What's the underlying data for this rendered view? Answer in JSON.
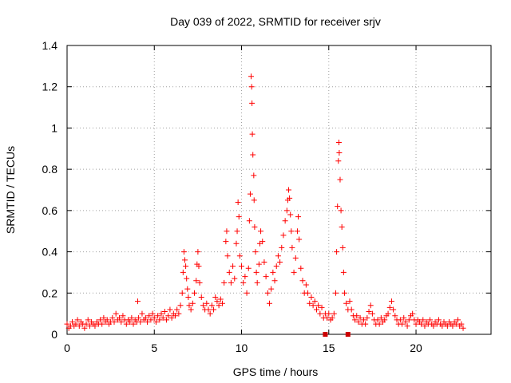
{
  "chart_data": {
    "type": "scatter",
    "title": "Day 039 of 2022, SRMTID for receiver srjv",
    "xlabel": "GPS time / hours",
    "ylabel": "SRMTID / TECUs",
    "xlim": [
      0,
      24.3
    ],
    "ylim": [
      0,
      1.4
    ],
    "xticks": [
      0,
      5,
      10,
      15,
      20
    ],
    "xtick_labels": [
      "0",
      "5",
      "10",
      "15",
      "20"
    ],
    "yticks": [
      0,
      0.2,
      0.4,
      0.6,
      0.8,
      1,
      1.2,
      1.4
    ],
    "ytick_labels": [
      "0",
      "0.2",
      "0.4",
      "0.6",
      "0.8",
      "1",
      "1.2",
      "1.4"
    ],
    "grid": true,
    "marker": "+",
    "series_color": "#ff0000",
    "series": [
      {
        "name": "SRMTID",
        "points": [
          [
            0.0,
            0.05
          ],
          [
            0.1,
            0.03
          ],
          [
            0.2,
            0.04
          ],
          [
            0.3,
            0.06
          ],
          [
            0.4,
            0.04
          ],
          [
            0.5,
            0.05
          ],
          [
            0.6,
            0.07
          ],
          [
            0.7,
            0.04
          ],
          [
            0.8,
            0.06
          ],
          [
            0.9,
            0.05
          ],
          [
            1.0,
            0.03
          ],
          [
            1.1,
            0.05
          ],
          [
            1.2,
            0.07
          ],
          [
            1.3,
            0.04
          ],
          [
            1.4,
            0.06
          ],
          [
            1.5,
            0.05
          ],
          [
            1.6,
            0.04
          ],
          [
            1.7,
            0.06
          ],
          [
            1.8,
            0.05
          ],
          [
            1.9,
            0.07
          ],
          [
            2.0,
            0.05
          ],
          [
            2.1,
            0.08
          ],
          [
            2.2,
            0.06
          ],
          [
            2.3,
            0.07
          ],
          [
            2.4,
            0.05
          ],
          [
            2.5,
            0.06
          ],
          [
            2.6,
            0.08
          ],
          [
            2.7,
            0.06
          ],
          [
            2.8,
            0.1
          ],
          [
            2.9,
            0.07
          ],
          [
            3.0,
            0.08
          ],
          [
            3.1,
            0.06
          ],
          [
            3.2,
            0.09
          ],
          [
            3.3,
            0.07
          ],
          [
            3.4,
            0.05
          ],
          [
            3.5,
            0.07
          ],
          [
            3.6,
            0.06
          ],
          [
            3.7,
            0.08
          ],
          [
            3.8,
            0.05
          ],
          [
            3.9,
            0.07
          ],
          [
            4.0,
            0.06
          ],
          [
            4.05,
            0.16
          ],
          [
            4.1,
            0.08
          ],
          [
            4.2,
            0.06
          ],
          [
            4.3,
            0.1
          ],
          [
            4.4,
            0.07
          ],
          [
            4.5,
            0.08
          ],
          [
            4.6,
            0.06
          ],
          [
            4.7,
            0.09
          ],
          [
            4.8,
            0.07
          ],
          [
            4.9,
            0.1
          ],
          [
            5.0,
            0.08
          ],
          [
            5.1,
            0.06
          ],
          [
            5.2,
            0.09
          ],
          [
            5.3,
            0.07
          ],
          [
            5.4,
            0.1
          ],
          [
            5.5,
            0.08
          ],
          [
            5.6,
            0.11
          ],
          [
            5.7,
            0.07
          ],
          [
            5.8,
            0.09
          ],
          [
            5.9,
            0.12
          ],
          [
            6.0,
            0.08
          ],
          [
            6.1,
            0.1
          ],
          [
            6.2,
            0.09
          ],
          [
            6.3,
            0.12
          ],
          [
            6.4,
            0.1
          ],
          [
            6.5,
            0.14
          ],
          [
            6.6,
            0.2
          ],
          [
            6.65,
            0.3
          ],
          [
            6.7,
            0.4
          ],
          [
            6.75,
            0.36
          ],
          [
            6.8,
            0.33
          ],
          [
            6.85,
            0.27
          ],
          [
            6.9,
            0.22
          ],
          [
            6.95,
            0.18
          ],
          [
            7.0,
            0.14
          ],
          [
            7.1,
            0.12
          ],
          [
            7.2,
            0.15
          ],
          [
            7.3,
            0.2
          ],
          [
            7.4,
            0.26
          ],
          [
            7.45,
            0.34
          ],
          [
            7.5,
            0.4
          ],
          [
            7.55,
            0.33
          ],
          [
            7.6,
            0.25
          ],
          [
            7.7,
            0.18
          ],
          [
            7.8,
            0.14
          ],
          [
            7.9,
            0.12
          ],
          [
            8.0,
            0.15
          ],
          [
            8.1,
            0.12
          ],
          [
            8.2,
            0.1
          ],
          [
            8.3,
            0.14
          ],
          [
            8.4,
            0.12
          ],
          [
            8.5,
            0.18
          ],
          [
            8.6,
            0.16
          ],
          [
            8.7,
            0.14
          ],
          [
            8.8,
            0.17
          ],
          [
            8.9,
            0.15
          ],
          [
            9.0,
            0.25
          ],
          [
            9.1,
            0.45
          ],
          [
            9.15,
            0.5
          ],
          [
            9.2,
            0.38
          ],
          [
            9.3,
            0.3
          ],
          [
            9.4,
            0.25
          ],
          [
            9.5,
            0.33
          ],
          [
            9.6,
            0.27
          ],
          [
            9.7,
            0.44
          ],
          [
            9.75,
            0.5
          ],
          [
            9.8,
            0.64
          ],
          [
            9.85,
            0.57
          ],
          [
            9.9,
            0.38
          ],
          [
            10.0,
            0.33
          ],
          [
            10.1,
            0.25
          ],
          [
            10.2,
            0.28
          ],
          [
            10.3,
            0.2
          ],
          [
            10.4,
            0.32
          ],
          [
            10.45,
            0.55
          ],
          [
            10.5,
            0.68
          ],
          [
            10.55,
            1.25
          ],
          [
            10.58,
            1.2
          ],
          [
            10.6,
            1.12
          ],
          [
            10.62,
            0.97
          ],
          [
            10.65,
            0.87
          ],
          [
            10.7,
            0.77
          ],
          [
            10.72,
            0.65
          ],
          [
            10.75,
            0.52
          ],
          [
            10.8,
            0.4
          ],
          [
            10.85,
            0.3
          ],
          [
            10.9,
            0.25
          ],
          [
            11.0,
            0.34
          ],
          [
            11.05,
            0.44
          ],
          [
            11.1,
            0.5
          ],
          [
            11.2,
            0.45
          ],
          [
            11.3,
            0.35
          ],
          [
            11.4,
            0.28
          ],
          [
            11.5,
            0.2
          ],
          [
            11.6,
            0.15
          ],
          [
            11.7,
            0.22
          ],
          [
            11.8,
            0.3
          ],
          [
            11.9,
            0.26
          ],
          [
            12.0,
            0.33
          ],
          [
            12.1,
            0.38
          ],
          [
            12.2,
            0.35
          ],
          [
            12.3,
            0.42
          ],
          [
            12.4,
            0.48
          ],
          [
            12.5,
            0.55
          ],
          [
            12.6,
            0.6
          ],
          [
            12.65,
            0.65
          ],
          [
            12.7,
            0.7
          ],
          [
            12.75,
            0.66
          ],
          [
            12.8,
            0.58
          ],
          [
            12.85,
            0.5
          ],
          [
            12.9,
            0.42
          ],
          [
            13.0,
            0.3
          ],
          [
            13.1,
            0.37
          ],
          [
            13.2,
            0.5
          ],
          [
            13.25,
            0.57
          ],
          [
            13.3,
            0.46
          ],
          [
            13.4,
            0.32
          ],
          [
            13.5,
            0.26
          ],
          [
            13.6,
            0.2
          ],
          [
            13.7,
            0.24
          ],
          [
            13.8,
            0.2
          ],
          [
            13.9,
            0.15
          ],
          [
            14.0,
            0.18
          ],
          [
            14.1,
            0.14
          ],
          [
            14.2,
            0.16
          ],
          [
            14.3,
            0.12
          ],
          [
            14.4,
            0.14
          ],
          [
            14.5,
            0.1
          ],
          [
            14.6,
            0.13
          ],
          [
            14.7,
            0.08
          ],
          [
            14.8,
            0.1
          ],
          [
            14.9,
            0.08
          ],
          [
            15.0,
            0.1
          ],
          [
            15.1,
            0.07
          ],
          [
            15.2,
            0.08
          ],
          [
            15.3,
            0.1
          ],
          [
            15.4,
            0.2
          ],
          [
            15.45,
            0.4
          ],
          [
            15.5,
            0.62
          ],
          [
            15.55,
            0.84
          ],
          [
            15.58,
            0.93
          ],
          [
            15.6,
            0.88
          ],
          [
            15.65,
            0.75
          ],
          [
            15.7,
            0.6
          ],
          [
            15.75,
            0.52
          ],
          [
            15.8,
            0.42
          ],
          [
            15.85,
            0.3
          ],
          [
            15.9,
            0.2
          ],
          [
            16.0,
            0.15
          ],
          [
            16.1,
            0.12
          ],
          [
            16.2,
            0.16
          ],
          [
            16.3,
            0.12
          ],
          [
            16.4,
            0.09
          ],
          [
            16.5,
            0.07
          ],
          [
            16.6,
            0.09
          ],
          [
            16.7,
            0.06
          ],
          [
            16.8,
            0.08
          ],
          [
            16.9,
            0.05
          ],
          [
            17.0,
            0.07
          ],
          [
            17.1,
            0.05
          ],
          [
            17.2,
            0.08
          ],
          [
            17.3,
            0.11
          ],
          [
            17.4,
            0.14
          ],
          [
            17.5,
            0.1
          ],
          [
            17.6,
            0.07
          ],
          [
            17.7,
            0.05
          ],
          [
            17.8,
            0.07
          ],
          [
            17.9,
            0.05
          ],
          [
            18.0,
            0.08
          ],
          [
            18.1,
            0.06
          ],
          [
            18.2,
            0.07
          ],
          [
            18.3,
            0.09
          ],
          [
            18.4,
            0.1
          ],
          [
            18.5,
            0.13
          ],
          [
            18.6,
            0.16
          ],
          [
            18.7,
            0.12
          ],
          [
            18.8,
            0.09
          ],
          [
            18.9,
            0.07
          ],
          [
            19.0,
            0.05
          ],
          [
            19.1,
            0.07
          ],
          [
            19.2,
            0.05
          ],
          [
            19.3,
            0.08
          ],
          [
            19.4,
            0.06
          ],
          [
            19.5,
            0.04
          ],
          [
            19.6,
            0.07
          ],
          [
            19.7,
            0.09
          ],
          [
            19.8,
            0.1
          ],
          [
            19.9,
            0.07
          ],
          [
            20.0,
            0.05
          ],
          [
            20.1,
            0.07
          ],
          [
            20.2,
            0.06
          ],
          [
            20.3,
            0.05
          ],
          [
            20.4,
            0.07
          ],
          [
            20.5,
            0.04
          ],
          [
            20.6,
            0.06
          ],
          [
            20.7,
            0.05
          ],
          [
            20.8,
            0.07
          ],
          [
            20.9,
            0.05
          ],
          [
            21.0,
            0.04
          ],
          [
            21.1,
            0.06
          ],
          [
            21.2,
            0.05
          ],
          [
            21.3,
            0.07
          ],
          [
            21.4,
            0.05
          ],
          [
            21.5,
            0.04
          ],
          [
            21.6,
            0.06
          ],
          [
            21.7,
            0.05
          ],
          [
            21.8,
            0.04
          ],
          [
            21.9,
            0.06
          ],
          [
            22.0,
            0.05
          ],
          [
            22.1,
            0.04
          ],
          [
            22.2,
            0.06
          ],
          [
            22.3,
            0.05
          ],
          [
            22.4,
            0.07
          ],
          [
            22.5,
            0.04
          ],
          [
            22.6,
            0.05
          ],
          [
            22.7,
            0.03
          ]
        ]
      }
    ],
    "markers_on_axis": [
      14.8,
      16.1
    ]
  }
}
